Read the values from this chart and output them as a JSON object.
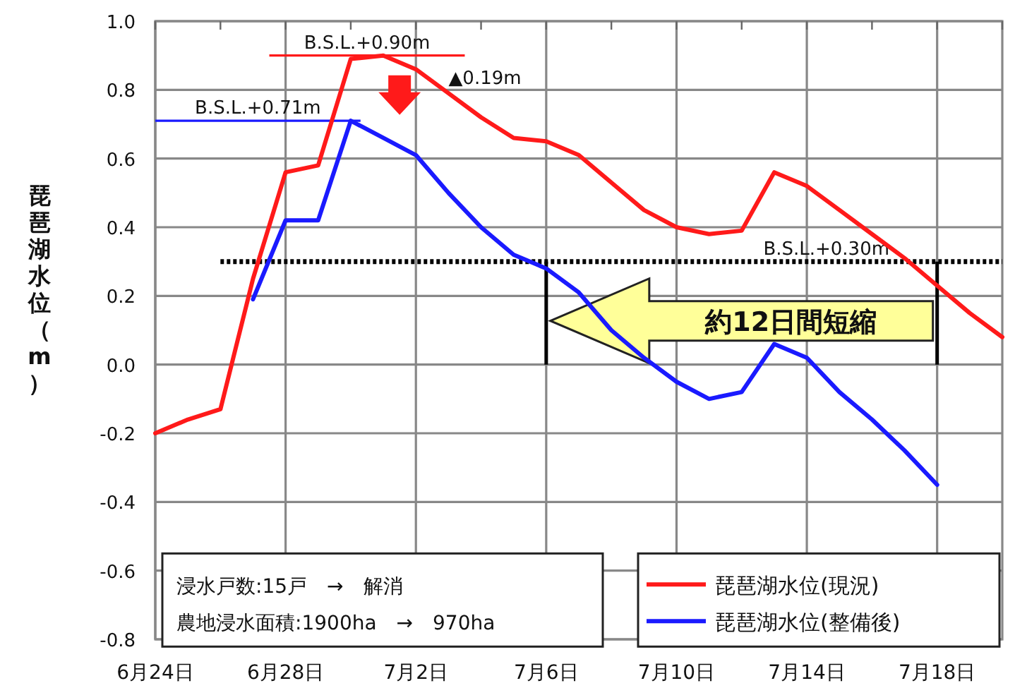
{
  "chart_data": {
    "type": "line",
    "ylabel": "琵琶湖水位（m）",
    "x": [
      "--06-24",
      "--06-25",
      "--06-26",
      "--06-27",
      "--06-28",
      "--06-29",
      "--06-30",
      "--07-01",
      "--07-02",
      "--07-03",
      "--07-04",
      "--07-05",
      "--07-06",
      "--07-07",
      "--07-08",
      "--07-09",
      "--07-10",
      "--07-11",
      "--07-12",
      "--07-13",
      "--07-14",
      "--07-15",
      "--07-16",
      "--07-17",
      "--07-18",
      "--07-19",
      "--07-20"
    ],
    "series": [
      {
        "name": "琵琶湖水位(現況)",
        "color": "#ff1a1a",
        "values": [
          -0.2,
          -0.16,
          -0.13,
          0.25,
          0.56,
          0.58,
          0.89,
          0.9,
          0.86,
          0.79,
          0.72,
          0.66,
          0.65,
          0.61,
          0.53,
          0.45,
          0.4,
          0.38,
          0.39,
          0.56,
          0.52,
          0.45,
          0.38,
          0.31,
          0.23,
          0.15,
          0.08
        ]
      },
      {
        "name": "琵琶湖水位(整備後)",
        "color": "#1a1aff",
        "values": [
          null,
          null,
          null,
          0.19,
          0.42,
          0.42,
          0.71,
          0.66,
          0.61,
          0.5,
          0.4,
          0.32,
          0.28,
          0.21,
          0.1,
          0.02,
          -0.05,
          -0.1,
          -0.08,
          0.06,
          0.02,
          -0.08,
          -0.16,
          -0.25,
          -0.35,
          null,
          null
        ]
      }
    ],
    "xlim": [
      "--06-24",
      "--07-20"
    ],
    "xticks": [
      {
        "value": "--06-24",
        "label": "6月24日"
      },
      {
        "value": "--06-26",
        "label": null
      },
      {
        "value": "--06-28",
        "label": "6月28日"
      },
      {
        "value": "--06-30",
        "label": null
      },
      {
        "value": "--07-02",
        "label": "7月2日"
      },
      {
        "value": "--07-04",
        "label": null
      },
      {
        "value": "--07-06",
        "label": "7月6日"
      },
      {
        "value": "--07-08",
        "label": null
      },
      {
        "value": "--07-10",
        "label": "7月10日"
      },
      {
        "value": "--07-12",
        "label": null
      },
      {
        "value": "--07-14",
        "label": "7月14日"
      },
      {
        "value": "--07-16",
        "label": null
      },
      {
        "value": "--07-18",
        "label": "7月18日"
      },
      {
        "value": "--07-20",
        "label": null
      }
    ],
    "ylim": [
      -0.8,
      1.0
    ],
    "yticks": [
      {
        "value": -0.8,
        "label": "-0.8"
      },
      {
        "value": -0.6,
        "label": "-0.6"
      },
      {
        "value": -0.4,
        "label": "-0.4"
      },
      {
        "value": -0.2,
        "label": "-0.2"
      },
      {
        "value": 0,
        "label": "0.0"
      },
      {
        "value": 0.2,
        "label": "0.2"
      },
      {
        "value": 0.4,
        "label": "0.4"
      },
      {
        "value": 0.6,
        "label": "0.6"
      },
      {
        "value": 0.8,
        "label": "0.8"
      },
      {
        "value": 1.0,
        "label": "1.0"
      }
    ],
    "grid": true,
    "legend": "bottom right",
    "line_style": "solid",
    "ref_lines": [
      {
        "axis": "y",
        "value": 0.9,
        "label": "B.S.L.+0.90m",
        "color": "#ff1a1a"
      },
      {
        "axis": "y",
        "value": 0.71,
        "label": "B.S.L.+0.71m",
        "color": "#1a1aff"
      },
      {
        "axis": "y",
        "value": 0.3,
        "label": "B.S.L.+0.30m",
        "color": "#000000",
        "line_style": "dotted"
      },
      {
        "axis": "x",
        "value": "--07-06",
        "color": "#000000"
      },
      {
        "axis": "x",
        "value": "--07-18",
        "color": "#000000"
      }
    ],
    "annotations": [
      "▲0.19m",
      "約12日間短縮",
      "浸水戸数:15戸　→　解消",
      "農地浸水面積:1900ha　→　970ha"
    ]
  }
}
